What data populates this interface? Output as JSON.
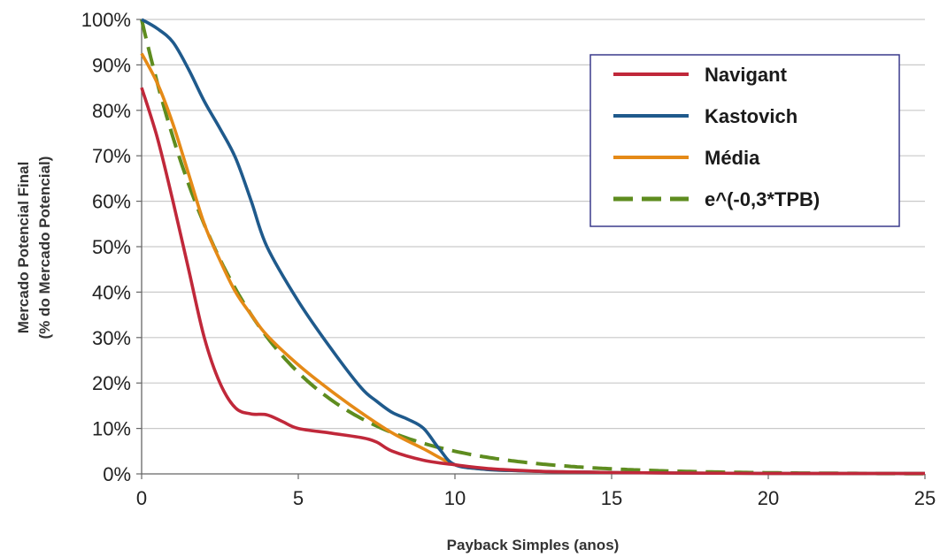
{
  "chart_data": {
    "type": "line",
    "title": "",
    "xlabel": "Payback Simples (anos)",
    "ylabel_line1": "Mercado Potencial Final",
    "ylabel_line2": "(% do Mercado Potencial)",
    "xlim": [
      0,
      25
    ],
    "ylim": [
      0,
      100
    ],
    "x_ticks": [
      0,
      5,
      10,
      15,
      20,
      25
    ],
    "x_tick_labels": [
      "0",
      "5",
      "10",
      "15",
      "20",
      "25"
    ],
    "y_ticks": [
      0,
      10,
      20,
      30,
      40,
      50,
      60,
      70,
      80,
      90,
      100
    ],
    "y_tick_labels": [
      "0%",
      "10%",
      "20%",
      "30%",
      "40%",
      "50%",
      "60%",
      "70%",
      "80%",
      "90%",
      "100%"
    ],
    "grid": "horizontal",
    "legend_position": "top-right",
    "series": [
      {
        "name": "Navigant",
        "color": "#c0283a",
        "style": "solid",
        "x": [
          0,
          0.5,
          1,
          1.5,
          2,
          2.5,
          3,
          3.5,
          4,
          4.5,
          5,
          6,
          7,
          7.5,
          8,
          9,
          10,
          11,
          12,
          13,
          14,
          15,
          17,
          20,
          25
        ],
        "y": [
          85,
          74,
          60,
          45,
          30,
          20,
          14.5,
          13.2,
          13,
          11.5,
          10,
          9,
          8,
          7,
          5,
          3,
          2,
          1.2,
          0.8,
          0.5,
          0.4,
          0.3,
          0.2,
          0.1,
          0.1
        ]
      },
      {
        "name": "Kastovich",
        "color": "#1f5a8c",
        "style": "solid",
        "x": [
          0,
          0.5,
          1,
          1.5,
          2,
          2.5,
          3,
          3.5,
          4,
          5,
          6,
          7,
          7.5,
          8,
          8.5,
          9,
          9.5,
          10,
          11,
          12,
          13,
          14,
          15,
          17,
          20,
          25
        ],
        "y": [
          100,
          98,
          95,
          89,
          82,
          76,
          69.5,
          60,
          50,
          38,
          28,
          19,
          16,
          13.5,
          12,
          10,
          5.5,
          2,
          1,
          0.7,
          0.5,
          0.4,
          0.3,
          0.2,
          0.1,
          0.1
        ]
      },
      {
        "name": "Média",
        "color": "#e58a17",
        "style": "solid",
        "x": [
          0,
          0.5,
          1,
          1.5,
          2,
          2.5,
          3,
          3.5,
          4,
          5,
          6,
          7,
          8,
          9,
          10,
          11,
          12,
          13,
          14,
          15,
          17,
          20,
          25
        ],
        "y": [
          92.5,
          86,
          77,
          66,
          55,
          47,
          40,
          35,
          30.5,
          24,
          18.5,
          13.5,
          9,
          5.5,
          2,
          1,
          0.7,
          0.5,
          0.4,
          0.3,
          0.2,
          0.1,
          0.1
        ]
      },
      {
        "name": "e^(-0,3*TPB)",
        "color": "#5e8c1f",
        "style": "dashed",
        "function": "exp(-0.3*x)"
      }
    ]
  },
  "colors": {
    "grid": "#c9c9c9",
    "axis": "#666666",
    "legend_border": "#3a3a8c"
  }
}
